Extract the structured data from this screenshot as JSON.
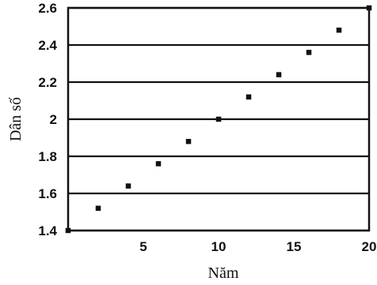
{
  "chart_data": {
    "type": "scatter",
    "title": "",
    "xlabel": "Năm",
    "ylabel": "Dân số",
    "xlim": [
      0,
      20
    ],
    "ylim": [
      1.4,
      2.6
    ],
    "x_ticks": [
      5,
      10,
      15,
      20
    ],
    "y_ticks": [
      "1.4",
      "1.6",
      "1.8",
      "2",
      "2.2",
      "2.4",
      "2.6"
    ],
    "grid": "horizontal",
    "series": [
      {
        "points": [
          {
            "x": 0,
            "y": 1.4
          },
          {
            "x": 2,
            "y": 1.52
          },
          {
            "x": 4,
            "y": 1.64
          },
          {
            "x": 6,
            "y": 1.76
          },
          {
            "x": 8,
            "y": 1.88
          },
          {
            "x": 10,
            "y": 2.0
          },
          {
            "x": 12,
            "y": 2.12
          },
          {
            "x": 14,
            "y": 2.24
          },
          {
            "x": 16,
            "y": 2.36
          },
          {
            "x": 18,
            "y": 2.48
          },
          {
            "x": 20,
            "y": 2.6
          }
        ]
      }
    ]
  }
}
